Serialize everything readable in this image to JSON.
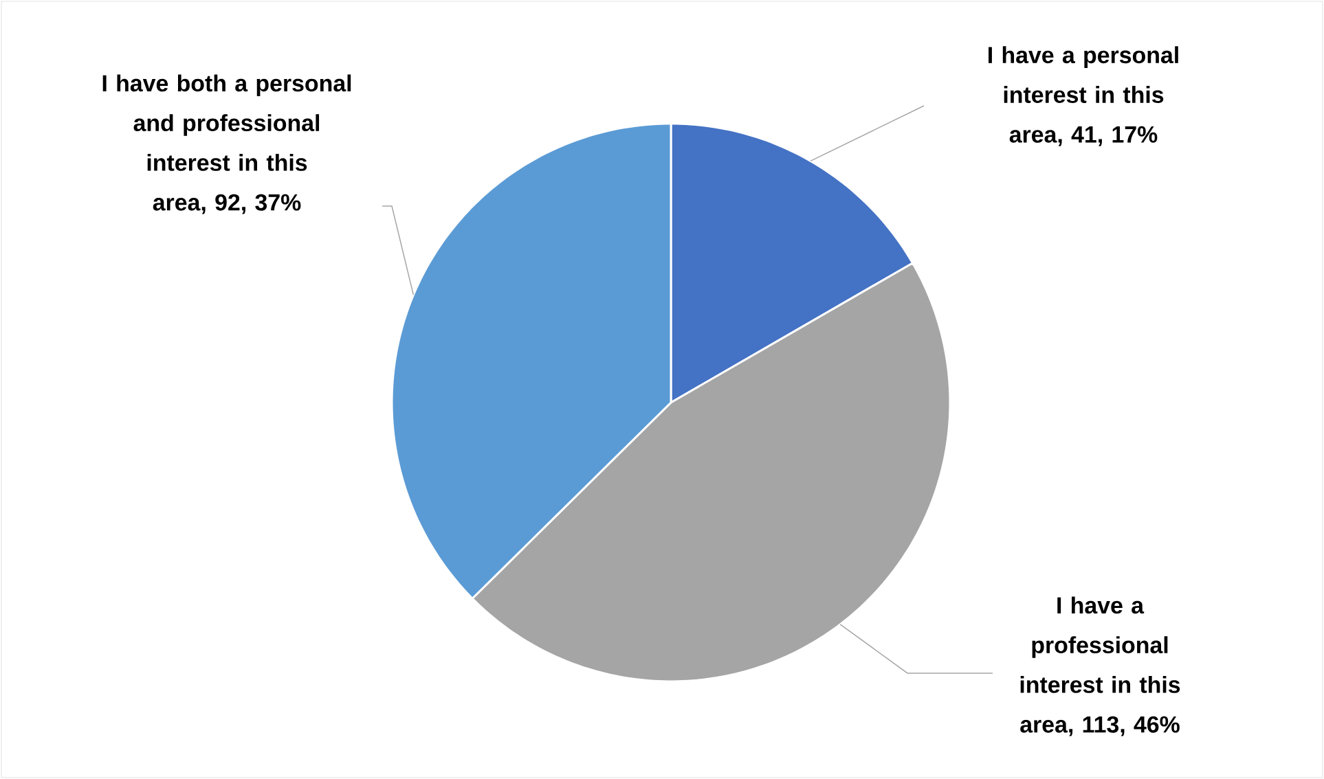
{
  "chart_data": {
    "type": "pie",
    "categories": [
      "I have a personal interest in this area",
      "I have a professional interest in this area",
      "I have both a personal and professional interest in this area"
    ],
    "values": [
      41,
      113,
      92
    ],
    "value_labels": [
      ", 41, 17%",
      ", 113, 46%",
      ", 92, 37%"
    ],
    "colors": [
      "#4472c4",
      "#a5a5a5",
      "#5b9bd5"
    ]
  }
}
